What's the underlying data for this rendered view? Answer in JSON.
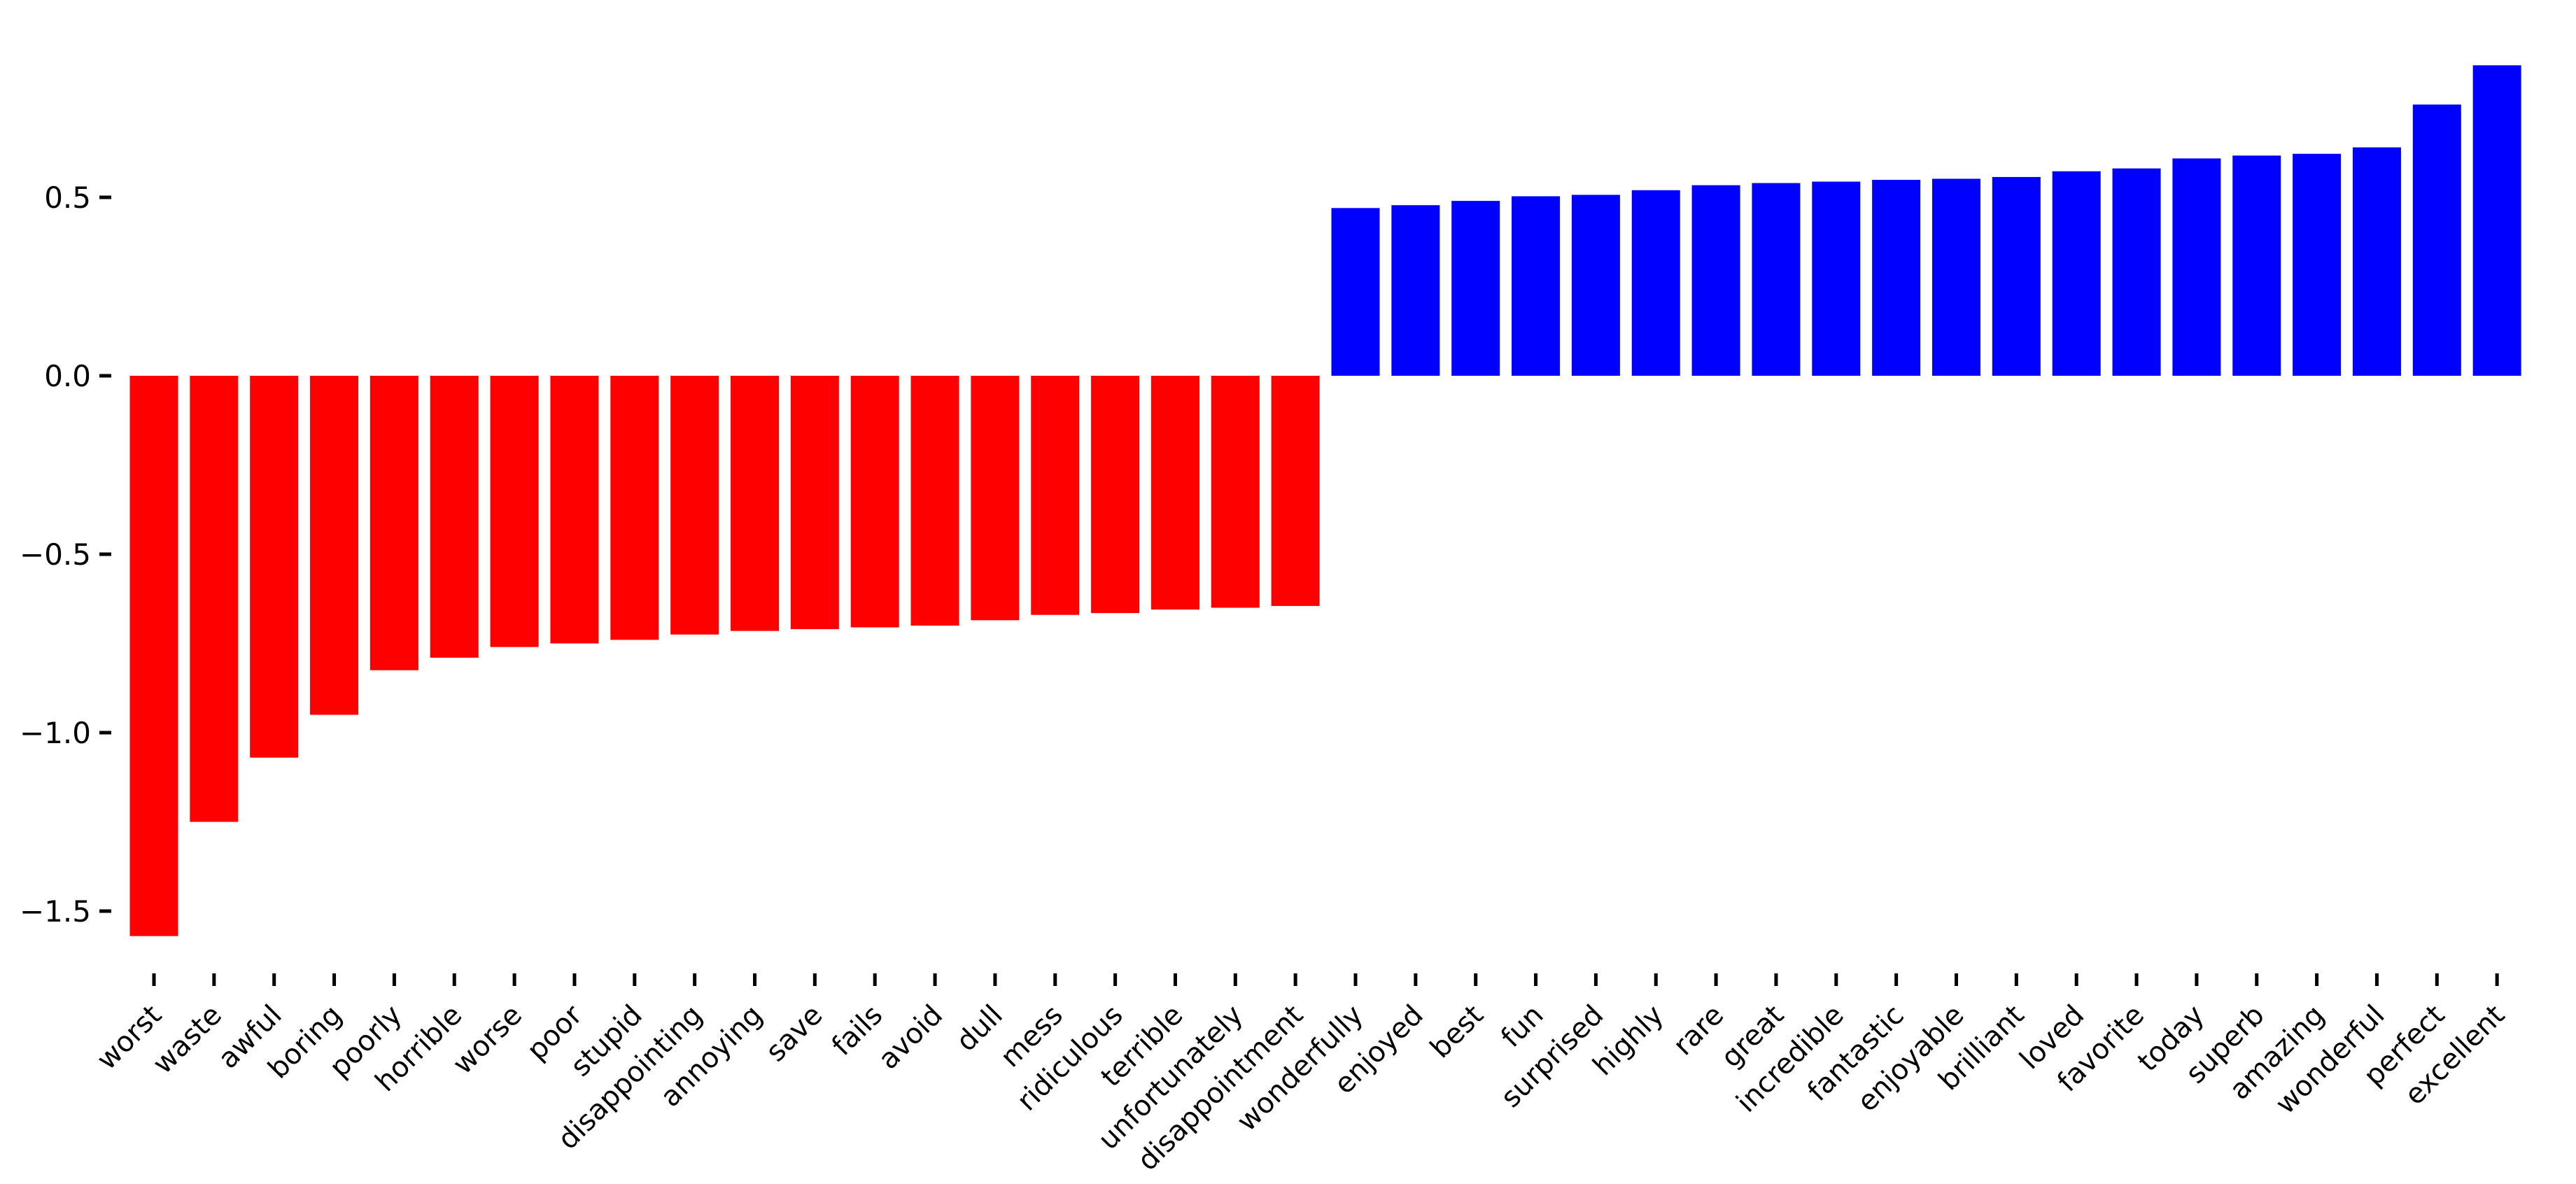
{
  "chart_data": {
    "type": "bar",
    "orientation": "vertical",
    "title": "",
    "xlabel": "",
    "ylabel": "",
    "categories": [
      "worst",
      "waste",
      "awful",
      "boring",
      "poorly",
      "horrible",
      "worse",
      "poor",
      "stupid",
      "disappointing",
      "annoying",
      "save",
      "fails",
      "avoid",
      "dull",
      "mess",
      "ridiculous",
      "terrible",
      "unfortunately",
      "disappointment",
      "wonderfully",
      "enjoyed",
      "best",
      "fun",
      "surprised",
      "highly",
      "rare",
      "great",
      "incredible",
      "fantastic",
      "enjoyable",
      "brilliant",
      "loved",
      "favorite",
      "today",
      "superb",
      "amazing",
      "wonderful",
      "perfect",
      "excellent"
    ],
    "values": [
      -1.57,
      -1.25,
      -1.07,
      -0.95,
      -0.825,
      -0.79,
      -0.76,
      -0.75,
      -0.74,
      -0.725,
      -0.715,
      -0.71,
      -0.705,
      -0.7,
      -0.685,
      -0.67,
      -0.665,
      -0.655,
      -0.65,
      -0.645,
      0.47,
      0.478,
      0.49,
      0.503,
      0.507,
      0.52,
      0.534,
      0.54,
      0.544,
      0.549,
      0.552,
      0.557,
      0.573,
      0.581,
      0.609,
      0.617,
      0.622,
      0.64,
      0.76,
      0.87
    ],
    "negative_color": "#ff0000",
    "positive_color": "#0000ff",
    "background_color": "#ffffff",
    "tick_color": "#000000",
    "label_color": "#000000",
    "y_ticks": [
      {
        "value": 0.5,
        "label": "0.5"
      },
      {
        "value": 0.0,
        "label": "0.0"
      },
      {
        "value": -0.5,
        "label": "−0.5"
      },
      {
        "value": -1.0,
        "label": "−1.0"
      },
      {
        "value": -1.5,
        "label": "−1.5"
      }
    ],
    "ylim": [
      -1.68,
      0.94
    ],
    "x_tick_rotation_deg": 45,
    "grid": false,
    "legend": null
  }
}
